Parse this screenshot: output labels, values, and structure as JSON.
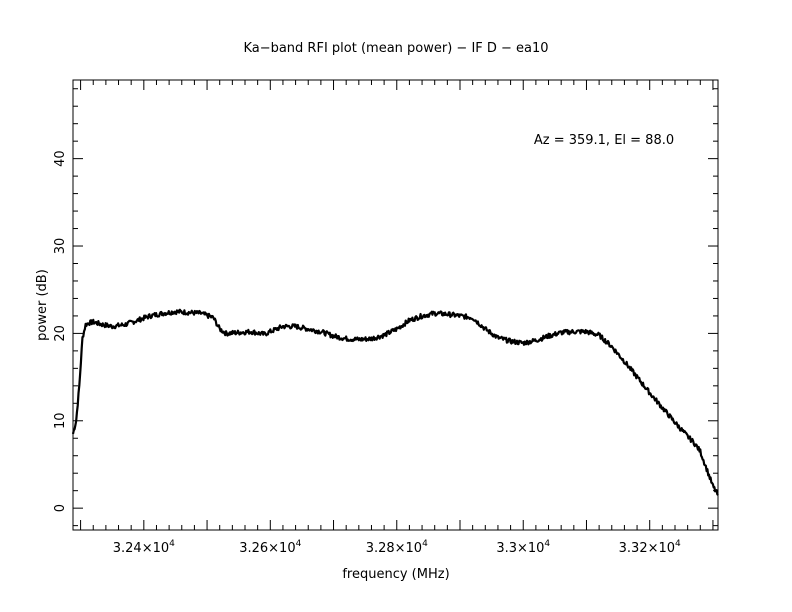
{
  "chart_data": {
    "type": "line",
    "title": "Ka−band RFI plot (mean power) − IF D − ea10",
    "xlabel": "frequency (MHz)",
    "ylabel": "power (dB)",
    "annotation": "Az = 359.1, El = 88.0",
    "xlim": [
      32288,
      33308
    ],
    "ylim": [
      -2.5,
      49
    ],
    "grid": false,
    "x_ticks": [
      {
        "value": 32400,
        "mantissa": "3.24",
        "exp": "4"
      },
      {
        "value": 32600,
        "mantissa": "3.26",
        "exp": "4"
      },
      {
        "value": 32800,
        "mantissa": "3.28",
        "exp": "4"
      },
      {
        "value": 33000,
        "mantissa": "3.3",
        "exp": "4"
      },
      {
        "value": 33200,
        "mantissa": "3.32",
        "exp": "4"
      }
    ],
    "y_ticks": [
      {
        "value": 0,
        "label": "0"
      },
      {
        "value": 10,
        "label": "10"
      },
      {
        "value": 20,
        "label": "20"
      },
      {
        "value": 30,
        "label": "30"
      },
      {
        "value": 40,
        "label": "40"
      }
    ],
    "series": [
      {
        "color": "#000000",
        "x": [
          32288,
          32293,
          32298,
          32303,
          32308,
          32313,
          32320,
          32335,
          32350,
          32370,
          32390,
          32410,
          32430,
          32450,
          32470,
          32490,
          32510,
          32520,
          32530,
          32550,
          32570,
          32590,
          32600,
          32620,
          32640,
          32660,
          32680,
          32700,
          32720,
          32740,
          32760,
          32780,
          32800,
          32820,
          32840,
          32860,
          32880,
          32900,
          32920,
          32940,
          32960,
          32980,
          32990,
          33000,
          33020,
          33040,
          33060,
          33080,
          33100,
          33120,
          33140,
          33160,
          33180,
          33200,
          33220,
          33240,
          33260,
          33270,
          33280,
          33290,
          33300,
          33308
        ],
        "y": [
          8.5,
          10,
          14,
          19.5,
          21,
          21.2,
          21.3,
          21.0,
          20.8,
          21.0,
          21.5,
          22.0,
          22.3,
          22.5,
          22.4,
          22.3,
          21.8,
          20.5,
          20.0,
          20.1,
          20.2,
          19.9,
          20.2,
          20.8,
          20.8,
          20.5,
          20.2,
          19.7,
          19.4,
          19.3,
          19.4,
          19.8,
          20.5,
          21.5,
          22.0,
          22.3,
          22.2,
          22.0,
          21.8,
          20.5,
          19.5,
          19.1,
          19.0,
          18.9,
          19.2,
          19.7,
          20.1,
          20.2,
          20.2,
          19.8,
          18.5,
          16.8,
          15.0,
          13.2,
          11.5,
          9.8,
          8.2,
          7.5,
          6.5,
          4.5,
          2.5,
          1.5
        ]
      }
    ]
  }
}
